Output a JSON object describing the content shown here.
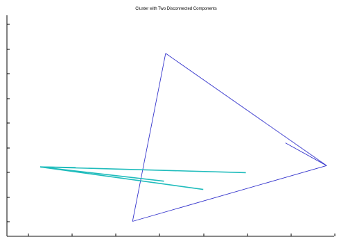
{
  "chart_data": {
    "type": "line",
    "title": "Cluster with Two Disconnected Components",
    "xlabel": "",
    "ylabel": "",
    "xlim": [
      0,
      100
    ],
    "ylim": [
      0,
      100
    ],
    "x_tick_count": 8,
    "y_tick_count": 9,
    "grid": false,
    "legend": "none",
    "series": [
      {
        "color": "#3333cc",
        "segments": [
          [
            [
              48.5,
              82.1
            ],
            [
              97.7,
              29.3
            ]
          ],
          [
            [
              97.7,
              29.3
            ],
            [
              38.4,
              3.1
            ]
          ],
          [
            [
              38.4,
              3.1
            ],
            [
              48.5,
              82.1
            ]
          ],
          [
            [
              97.7,
              29.3
            ],
            [
              85.1,
              40.0
            ]
          ]
        ]
      },
      {
        "color": "#1fbcbc",
        "segments": [
          [
            [
              10.2,
              28.7
            ],
            [
              73.0,
              26.0
            ]
          ],
          [
            [
              10.2,
              28.7
            ],
            [
              60.0,
              18.1
            ]
          ],
          [
            [
              10.2,
              28.7
            ],
            [
              21.0,
              28.4
            ]
          ],
          [
            [
              10.2,
              28.7
            ],
            [
              48.0,
              22.0
            ]
          ]
        ]
      }
    ]
  }
}
